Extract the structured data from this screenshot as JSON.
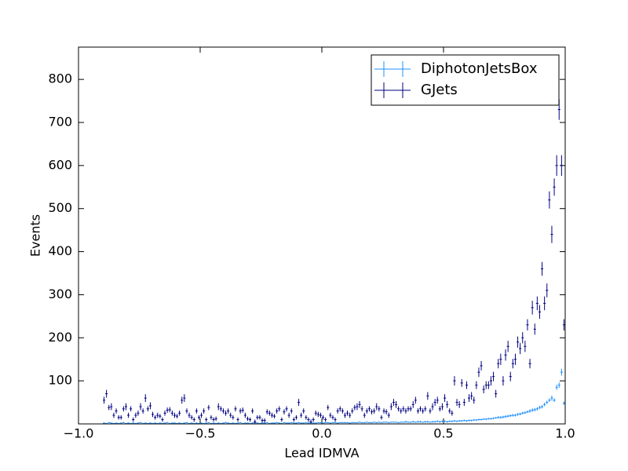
{
  "chart_data": {
    "type": "errorbar",
    "xlabel": "Lead IDMVA",
    "ylabel": "Events",
    "xlim": [
      -1,
      1
    ],
    "ylim": [
      0,
      875
    ],
    "xticks": [
      {
        "value": -1,
        "label": "−1.0"
      },
      {
        "value": -0.5,
        "label": "−0.5"
      },
      {
        "value": 0,
        "label": "0.0"
      },
      {
        "value": 0.5,
        "label": "0.5"
      },
      {
        "value": 1,
        "label": "1.0"
      }
    ],
    "yticks": [
      100,
      200,
      300,
      400,
      500,
      600,
      700,
      800
    ],
    "legend": "upper right",
    "xerr": 0.005,
    "x": [
      -0.995,
      -0.985,
      -0.975,
      -0.965,
      -0.955,
      -0.945,
      -0.935,
      -0.925,
      -0.915,
      -0.905,
      -0.895,
      -0.885,
      -0.875,
      -0.865,
      -0.855,
      -0.845,
      -0.835,
      -0.825,
      -0.815,
      -0.805,
      -0.795,
      -0.785,
      -0.775,
      -0.765,
      -0.755,
      -0.745,
      -0.735,
      -0.725,
      -0.715,
      -0.705,
      -0.695,
      -0.685,
      -0.675,
      -0.665,
      -0.655,
      -0.645,
      -0.635,
      -0.625,
      -0.615,
      -0.605,
      -0.595,
      -0.585,
      -0.575,
      -0.565,
      -0.555,
      -0.545,
      -0.535,
      -0.525,
      -0.515,
      -0.505,
      -0.495,
      -0.485,
      -0.475,
      -0.465,
      -0.455,
      -0.445,
      -0.435,
      -0.425,
      -0.415,
      -0.405,
      -0.395,
      -0.385,
      -0.375,
      -0.365,
      -0.355,
      -0.345,
      -0.335,
      -0.325,
      -0.315,
      -0.305,
      -0.295,
      -0.285,
      -0.275,
      -0.265,
      -0.255,
      -0.245,
      -0.235,
      -0.225,
      -0.215,
      -0.205,
      -0.195,
      -0.185,
      -0.175,
      -0.165,
      -0.155,
      -0.145,
      -0.135,
      -0.125,
      -0.115,
      -0.105,
      -0.095,
      -0.085,
      -0.075,
      -0.065,
      -0.055,
      -0.045,
      -0.035,
      -0.025,
      -0.015,
      -0.005,
      0.005,
      0.015,
      0.025,
      0.035,
      0.045,
      0.055,
      0.065,
      0.075,
      0.085,
      0.095,
      0.105,
      0.115,
      0.125,
      0.135,
      0.145,
      0.155,
      0.165,
      0.175,
      0.185,
      0.195,
      0.205,
      0.215,
      0.225,
      0.235,
      0.245,
      0.255,
      0.265,
      0.275,
      0.285,
      0.295,
      0.305,
      0.315,
      0.325,
      0.335,
      0.345,
      0.355,
      0.365,
      0.375,
      0.385,
      0.395,
      0.405,
      0.415,
      0.425,
      0.435,
      0.445,
      0.455,
      0.465,
      0.475,
      0.485,
      0.495,
      0.505,
      0.515,
      0.525,
      0.535,
      0.545,
      0.555,
      0.565,
      0.575,
      0.585,
      0.595,
      0.605,
      0.615,
      0.625,
      0.635,
      0.645,
      0.655,
      0.665,
      0.675,
      0.685,
      0.695,
      0.705,
      0.715,
      0.725,
      0.735,
      0.745,
      0.755,
      0.765,
      0.775,
      0.785,
      0.795,
      0.805,
      0.815,
      0.825,
      0.835,
      0.845,
      0.855,
      0.865,
      0.875,
      0.885,
      0.895,
      0.905,
      0.915,
      0.925,
      0.935,
      0.945,
      0.955,
      0.965,
      0.975,
      0.985,
      0.995
    ],
    "series": [
      {
        "name": "DiphotonJetsBox",
        "color": "#1e90ff",
        "values": [
          0,
          0,
          0,
          0,
          0,
          0,
          0,
          0,
          0,
          0,
          2,
          1,
          3,
          2,
          1,
          2,
          1,
          2,
          3,
          1,
          2,
          1,
          2,
          1,
          2,
          3,
          1,
          2,
          1,
          2,
          1,
          2,
          1,
          2,
          1,
          2,
          3,
          1,
          2,
          2,
          1,
          2,
          1,
          2,
          3,
          1,
          2,
          1,
          2,
          1,
          2,
          1,
          2,
          3,
          1,
          2,
          1,
          2,
          1,
          2,
          3,
          2,
          1,
          2,
          1,
          2,
          3,
          1,
          2,
          2,
          1,
          2,
          3,
          2,
          1,
          2,
          2,
          3,
          1,
          2,
          2,
          3,
          2,
          1,
          3,
          2,
          2,
          3,
          2,
          2,
          3,
          2,
          2,
          3,
          2,
          3,
          2,
          2,
          3,
          3,
          2,
          3,
          3,
          2,
          3,
          3,
          2,
          3,
          3,
          3,
          3,
          2,
          3,
          3,
          3,
          4,
          3,
          3,
          4,
          3,
          3,
          4,
          3,
          4,
          3,
          4,
          4,
          3,
          4,
          4,
          4,
          3,
          4,
          4,
          5,
          4,
          4,
          5,
          4,
          5,
          5,
          4,
          5,
          5,
          4,
          5,
          5,
          6,
          5,
          6,
          6,
          5,
          6,
          6,
          7,
          6,
          7,
          7,
          8,
          7,
          8,
          8,
          9,
          9,
          10,
          10,
          11,
          11,
          12,
          12,
          13,
          14,
          15,
          15,
          16,
          17,
          18,
          19,
          20,
          20,
          22,
          23,
          25,
          26,
          28,
          30,
          32,
          33,
          35,
          38,
          40,
          45,
          50,
          55,
          60,
          55,
          85,
          90,
          120,
          48
        ],
        "errors": [
          0,
          0,
          0,
          0,
          0,
          0,
          0,
          0,
          0,
          0,
          1,
          1,
          1,
          1,
          1,
          1,
          1,
          1,
          1,
          1,
          1,
          1,
          1,
          1,
          1,
          1,
          1,
          1,
          1,
          1,
          1,
          1,
          1,
          1,
          1,
          1,
          1,
          1,
          1,
          1,
          1,
          1,
          1,
          1,
          1,
          1,
          1,
          1,
          1,
          1,
          1,
          1,
          1,
          1,
          1,
          1,
          1,
          1,
          1,
          1,
          1,
          1,
          1,
          1,
          1,
          1,
          1,
          1,
          1,
          1,
          1,
          1,
          1,
          1,
          1,
          1,
          1,
          1,
          1,
          1,
          1,
          1,
          1,
          1,
          1,
          1,
          1,
          1,
          1,
          1,
          1,
          1,
          1,
          1,
          1,
          1,
          1,
          1,
          1,
          1,
          1,
          1,
          1,
          1,
          1,
          1,
          1,
          1,
          1,
          1,
          1,
          1,
          1,
          1,
          1,
          1,
          1,
          1,
          1,
          1,
          1,
          1,
          1,
          1,
          1,
          1,
          1,
          1,
          1,
          1,
          1,
          1,
          1,
          1,
          2,
          1,
          1,
          2,
          1,
          2,
          2,
          1,
          2,
          2,
          1,
          2,
          2,
          2,
          2,
          2,
          2,
          2,
          2,
          2,
          2,
          2,
          2,
          2,
          2,
          2,
          2,
          2,
          2,
          2,
          2,
          2,
          2,
          2,
          2,
          2,
          2,
          2,
          3,
          3,
          3,
          3,
          3,
          3,
          3,
          3,
          3,
          3,
          3,
          3,
          3,
          4,
          4,
          4,
          4,
          4,
          4,
          4,
          4,
          4,
          6,
          4,
          6,
          6,
          8,
          4
        ]
      },
      {
        "name": "GJets",
        "color": "#000080",
        "values": [
          0,
          0,
          0,
          0,
          0,
          0,
          0,
          0,
          0,
          0,
          55,
          70,
          38,
          40,
          20,
          30,
          15,
          15,
          35,
          40,
          20,
          35,
          10,
          20,
          25,
          40,
          30,
          60,
          35,
          42,
          22,
          15,
          20,
          18,
          10,
          25,
          32,
          33,
          25,
          20,
          18,
          25,
          55,
          60,
          30,
          20,
          15,
          10,
          30,
          15,
          20,
          30,
          10,
          38,
          15,
          10,
          12,
          40,
          35,
          30,
          25,
          30,
          20,
          15,
          35,
          10,
          30,
          32,
          20,
          12,
          10,
          30,
          5,
          15,
          15,
          8,
          8,
          28,
          25,
          20,
          18,
          30,
          35,
          10,
          28,
          35,
          20,
          30,
          10,
          15,
          50,
          20,
          30,
          15,
          10,
          5,
          10,
          25,
          22,
          20,
          15,
          10,
          38,
          20,
          15,
          10,
          30,
          35,
          30,
          20,
          25,
          20,
          30,
          38,
          40,
          45,
          35,
          20,
          30,
          35,
          28,
          30,
          40,
          35,
          15,
          30,
          28,
          20,
          40,
          50,
          45,
          35,
          30,
          35,
          30,
          35,
          35,
          45,
          55,
          30,
          35,
          30,
          35,
          65,
          30,
          40,
          50,
          55,
          35,
          40,
          60,
          45,
          30,
          25,
          100,
          50,
          45,
          95,
          50,
          90,
          60,
          65,
          55,
          90,
          120,
          135,
          80,
          90,
          90,
          100,
          110,
          70,
          140,
          150,
          100,
          160,
          180,
          110,
          140,
          150,
          190,
          175,
          200,
          180,
          230,
          140,
          270,
          220,
          280,
          260,
          360,
          280,
          310,
          520,
          440,
          550,
          600,
          730,
          600,
          230
        ],
        "errors": [
          0,
          0,
          0,
          0,
          0,
          0,
          0,
          0,
          0,
          0,
          8,
          9,
          6,
          8,
          6,
          6,
          5,
          5,
          6,
          8,
          6,
          6,
          5,
          6,
          6,
          8,
          6,
          9,
          6,
          8,
          6,
          5,
          6,
          5,
          5,
          6,
          6,
          6,
          6,
          6,
          5,
          6,
          8,
          9,
          6,
          6,
          5,
          5,
          6,
          5,
          6,
          6,
          5,
          6,
          5,
          5,
          5,
          8,
          6,
          6,
          6,
          6,
          6,
          5,
          6,
          5,
          6,
          6,
          6,
          5,
          5,
          6,
          5,
          5,
          5,
          5,
          5,
          6,
          6,
          6,
          5,
          6,
          6,
          5,
          6,
          6,
          6,
          6,
          5,
          5,
          8,
          6,
          6,
          5,
          5,
          5,
          5,
          6,
          6,
          6,
          5,
          5,
          6,
          6,
          5,
          5,
          6,
          6,
          6,
          6,
          6,
          6,
          6,
          6,
          8,
          8,
          6,
          6,
          6,
          6,
          6,
          6,
          8,
          6,
          5,
          6,
          6,
          6,
          8,
          8,
          8,
          6,
          6,
          6,
          6,
          6,
          6,
          8,
          8,
          6,
          6,
          6,
          6,
          9,
          6,
          8,
          8,
          8,
          6,
          8,
          9,
          8,
          6,
          6,
          11,
          8,
          8,
          9,
          8,
          9,
          9,
          9,
          8,
          9,
          11,
          11,
          9,
          9,
          9,
          11,
          11,
          9,
          11,
          13,
          11,
          13,
          13,
          11,
          11,
          13,
          13,
          13,
          13,
          13,
          13,
          11,
          16,
          13,
          16,
          16,
          16,
          16,
          16,
          20,
          20,
          20,
          24,
          24,
          24,
          13
        ]
      }
    ]
  }
}
